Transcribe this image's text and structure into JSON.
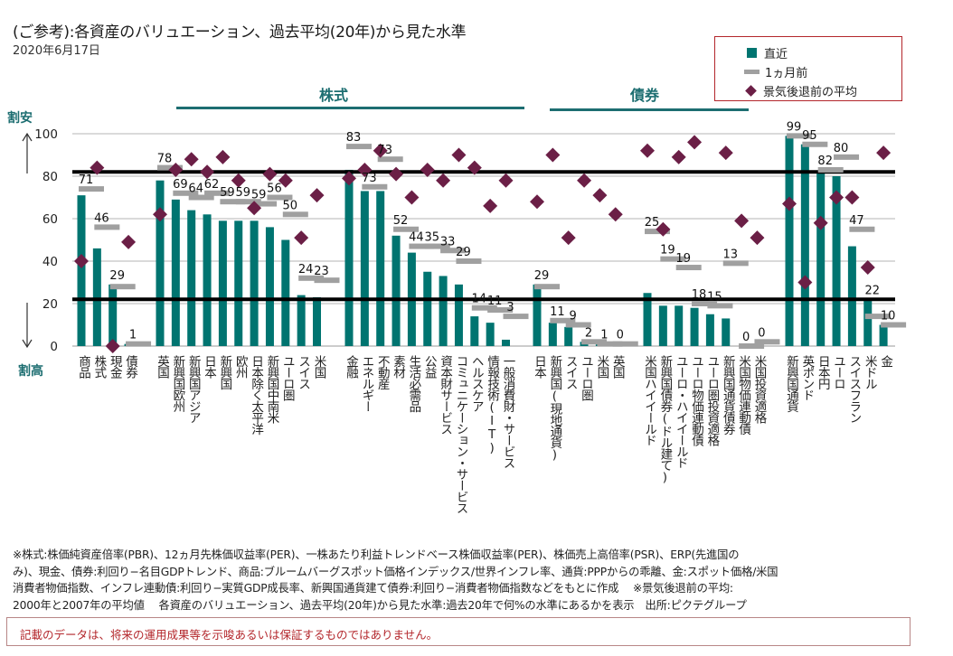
{
  "header": {
    "title": "(ご参考):各資産のバリュエーション、過去平均(20年)から見た水準",
    "date": "2020年6月17日"
  },
  "legend": {
    "items": [
      {
        "label": "直近",
        "type": "bar",
        "color": "#007470"
      },
      {
        "label": "1ヵ月前",
        "type": "dash",
        "color": "#a0a0a0"
      },
      {
        "label": "景気後退前の平均",
        "type": "diamond",
        "color": "#6b1f46"
      }
    ]
  },
  "group_headers": {
    "equity": "株式",
    "bonds": "債券"
  },
  "axis_side_labels": {
    "cheap": "割安",
    "expensive": "割高"
  },
  "chart_data": {
    "type": "bar",
    "title": "(ご参考):各資産のバリュエーション、過去平均(20年)から見た水準",
    "subtitle": "2020年6月17日",
    "xlabel": "",
    "ylabel": "",
    "ylim": [
      0,
      100
    ],
    "yticks": [
      0,
      20,
      40,
      60,
      80,
      100
    ],
    "grid": true,
    "legend_position": "top-right",
    "reference_lines": [
      82,
      22
    ],
    "groups": [
      {
        "name": "",
        "categories": [
          "商品",
          "株式",
          "現金",
          "債券"
        ]
      },
      {
        "name": "株式",
        "categories": [
          "英国",
          "新興国欧州",
          "新興国アジア",
          "日本",
          "新興国",
          "欧州",
          "日本除く太平洋",
          "新興国中南米",
          "ユーロ圏",
          "スイス",
          "米国"
        ]
      },
      {
        "name": "株式",
        "categories": [
          "金融",
          "エネルギー",
          "不動産",
          "素材",
          "生活必需品",
          "公益",
          "資本財サービス",
          "コミュニケーション・サービス",
          "ヘルスケア",
          "情報技術(IT)",
          "一般消費財・サービス"
        ]
      },
      {
        "name": "債券",
        "categories": [
          "日本",
          "新興国(現地通貨)",
          "スイス",
          "ユーロ圏",
          "米国",
          "英国"
        ]
      },
      {
        "name": "債券",
        "categories": [
          "米国ハイイールド",
          "新興国債券(ドル建て)",
          "ユーロ・ハイイールド",
          "ユーロ物価連動債",
          "ユーロ圏投資適格",
          "新興国通貨債券",
          "米国物価連動債",
          "米国投資適格"
        ]
      },
      {
        "name": "",
        "categories": [
          "新興国通貨",
          "英ポンド",
          "日本円",
          "ユーロ",
          "スイスフラン",
          "米ドル",
          "金"
        ]
      }
    ],
    "series": [
      {
        "name": "直近",
        "type": "bar",
        "values": [
          [
            71,
            46,
            29,
            1
          ],
          [
            78,
            69,
            64,
            62,
            59,
            59,
            59,
            56,
            50,
            24,
            23
          ],
          [
            83,
            73,
            73,
            52,
            44,
            35,
            33,
            29,
            14,
            11,
            3
          ],
          [
            29,
            11,
            9,
            2,
            1,
            0
          ],
          [
            25,
            19,
            19,
            18,
            15,
            13,
            0,
            0
          ],
          [
            99,
            95,
            82,
            80,
            47,
            22,
            10
          ]
        ]
      },
      {
        "name": "1ヵ月前",
        "type": "dash",
        "values": [
          [
            74,
            56,
            28,
            1
          ],
          [
            84,
            72,
            70,
            72,
            68,
            68,
            67,
            70,
            62,
            32,
            31
          ],
          [
            94,
            75,
            88,
            55,
            47,
            47,
            45,
            40,
            18,
            17,
            14
          ],
          [
            28,
            12,
            10,
            2,
            1,
            1
          ],
          [
            54,
            41,
            37,
            20,
            19,
            39,
            0,
            2
          ],
          [
            99,
            95,
            83,
            89,
            55,
            14,
            10
          ]
        ]
      },
      {
        "name": "景気後退前の平均",
        "type": "diamond",
        "values": [
          [
            40,
            84,
            0,
            49
          ],
          [
            62,
            83,
            88,
            82,
            89,
            78,
            65,
            81,
            78,
            51,
            71
          ],
          [
            79,
            83,
            92,
            81,
            70,
            83,
            78,
            90,
            84,
            66,
            78
          ],
          [
            68,
            90,
            51,
            78,
            71,
            62
          ],
          [
            92,
            55,
            89,
            96,
            null,
            91,
            59,
            51
          ],
          [
            67,
            30,
            58,
            70,
            70,
            37,
            91
          ]
        ]
      }
    ]
  },
  "footnote": {
    "lines": [
      "※株式:株価純資産倍率(PBR)、12ヵ月先株価収益率(PER)、一株あたり利益トレンドベース株価収益率(PER)、株価売上高倍率(PSR)、ERP(先進国の",
      "み)、現金、債券:利回り−名目GDPトレンド、商品:ブルームバーグスポット価格インデックス/世界インフレ率、通貨:PPPからの乖離、金:スポット価格/米国",
      "消費者物価指数、インフレ連動債:利回り−実質GDP成長率、新興国通貨建て債券:利回り−消費者物価指数などをもとに作成　 ※景気後退前の平均:",
      "2000年と2007年の平均値　 各資産のバリュエーション、過去平均(20年)から見た水準:過去20年で何%の水準にあるかを表示　出所:ピクテグループ"
    ]
  },
  "disclaimer": "記載のデータは、将来の運用成果等を示唆あるいは保証するものではありません。"
}
